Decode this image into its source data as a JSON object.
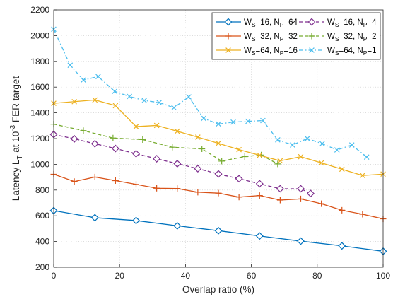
{
  "chart_data": {
    "type": "line",
    "title": "",
    "xlabel": "Overlap ratio (%)",
    "ylabel": {
      "prefix": "Latency L",
      "sub": "T",
      "mid": " at 10",
      "sup": "-3",
      "suffix": " FER target"
    },
    "xlim": [
      0,
      100
    ],
    "ylim": [
      200,
      2200
    ],
    "xticks": [
      0,
      20,
      40,
      60,
      80,
      100
    ],
    "yticks": [
      200,
      400,
      600,
      800,
      1000,
      1200,
      1400,
      1600,
      1800,
      2000,
      2200
    ],
    "grid": true,
    "legend_position": "top-right",
    "series": [
      {
        "name": {
          "a": "W",
          "a_sub": "S",
          "b": "=16, N",
          "b_sub": "P",
          "c": "=64"
        },
        "color": "#0072BD",
        "marker": "diamond",
        "dash": "solid",
        "x": [
          0,
          12.5,
          25,
          37.5,
          50,
          62.5,
          75,
          87.5,
          100
        ],
        "y": [
          640,
          585,
          563,
          522,
          484,
          443,
          403,
          366,
          324
        ]
      },
      {
        "name": {
          "a": "W",
          "a_sub": "S",
          "b": "=16, N",
          "b_sub": "P",
          "c": "=4"
        },
        "color": "#7E2F8E",
        "marker": "diamond",
        "dash": "dashed",
        "x": [
          0,
          6.25,
          12.5,
          18.75,
          25,
          31.25,
          37.5,
          43.75,
          50,
          56.25,
          62.5,
          68.75,
          75,
          78
        ],
        "y": [
          1232,
          1198,
          1160,
          1123,
          1082,
          1043,
          1005,
          966,
          925,
          888,
          849,
          810,
          810,
          773
        ]
      },
      {
        "name": {
          "a": "W",
          "a_sub": "S",
          "b": "=32, N",
          "b_sub": "P",
          "c": "=32"
        },
        "color": "#D95319",
        "marker": "plus",
        "dash": "solid",
        "x": [
          0,
          6.25,
          12.5,
          18.75,
          25,
          31.25,
          37.5,
          43.75,
          50,
          56.25,
          62.5,
          68.75,
          75,
          81.25,
          87.5,
          93.75,
          100
        ],
        "y": [
          923,
          866,
          901,
          873,
          844,
          814,
          812,
          783,
          776,
          745,
          757,
          722,
          731,
          694,
          643,
          612,
          576
        ]
      },
      {
        "name": {
          "a": "W",
          "a_sub": "S",
          "b": "=32, N",
          "b_sub": "P",
          "c": "=2"
        },
        "color": "#77AC30",
        "marker": "plus",
        "dash": "dashed",
        "x": [
          0,
          9,
          18,
          27,
          36,
          45,
          51,
          58,
          63,
          68
        ],
        "y": [
          1312,
          1262,
          1204,
          1192,
          1133,
          1120,
          1025,
          1060,
          1072,
          1003
        ]
      },
      {
        "name": {
          "a": "W",
          "a_sub": "S",
          "b": "=64, N",
          "b_sub": "P",
          "c": "=16"
        },
        "color": "#EDB120",
        "marker": "x",
        "dash": "solid",
        "x": [
          0,
          6.25,
          12.5,
          18.75,
          25,
          31.25,
          37.5,
          43.75,
          50,
          56.25,
          62.5,
          68.75,
          75,
          81.25,
          87.5,
          93.75,
          100
        ],
        "y": [
          1474,
          1487,
          1500,
          1456,
          1293,
          1302,
          1257,
          1211,
          1163,
          1114,
          1070,
          1027,
          1059,
          1011,
          962,
          913,
          924
        ]
      },
      {
        "name": {
          "a": "W",
          "a_sub": "S",
          "b": "=64, N",
          "b_sub": "P",
          "c": "=1"
        },
        "color": "#4DBEEE",
        "marker": "x",
        "dash": "dashdot",
        "x": [
          0,
          5,
          9,
          13.5,
          18.5,
          23,
          27.5,
          32,
          36.5,
          41,
          45.5,
          50,
          54.5,
          59,
          63.5,
          68,
          72.5,
          77,
          81.5,
          86,
          90.5,
          95
        ],
        "y": [
          2050,
          1770,
          1655,
          1682,
          1567,
          1527,
          1496,
          1480,
          1440,
          1524,
          1357,
          1313,
          1328,
          1334,
          1340,
          1190,
          1150,
          1200,
          1160,
          1112,
          1150,
          1056
        ]
      }
    ]
  }
}
